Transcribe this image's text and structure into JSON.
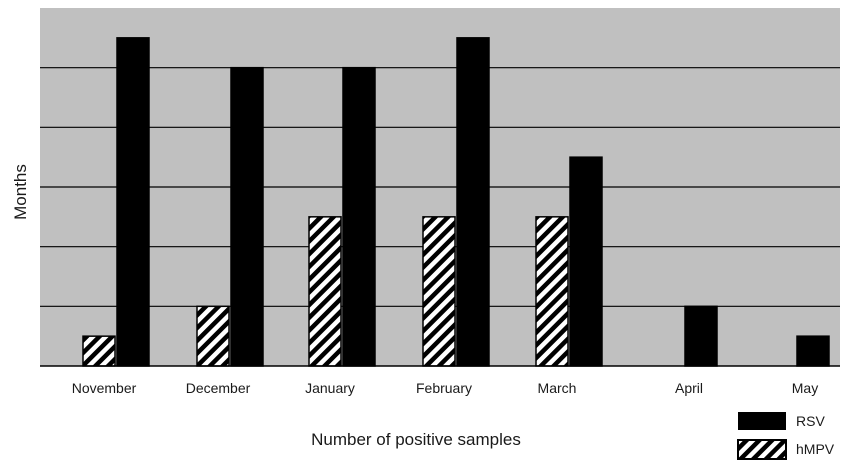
{
  "chart_data": {
    "type": "bar",
    "categories": [
      "November",
      "December",
      "January",
      "February",
      "March",
      "April",
      "May"
    ],
    "series": [
      {
        "name": "hMPV",
        "values": [
          0.5,
          1,
          2.5,
          2.5,
          2.5,
          0,
          0
        ]
      },
      {
        "name": "RSV",
        "values": [
          5.5,
          5,
          5,
          5.5,
          3.5,
          1,
          0.5
        ]
      }
    ],
    "xlabel": "Number of positive samples",
    "ylabel": "Months",
    "ylim": [
      0,
      6
    ],
    "grid": true,
    "legend_position": "bottom-right",
    "colors": {
      "plot_background": "#c0c0c0",
      "RSV": "#000000",
      "hMPV_stripe": "#000000",
      "hMPV_base": "#ffffff",
      "gridline": "#000000"
    }
  }
}
